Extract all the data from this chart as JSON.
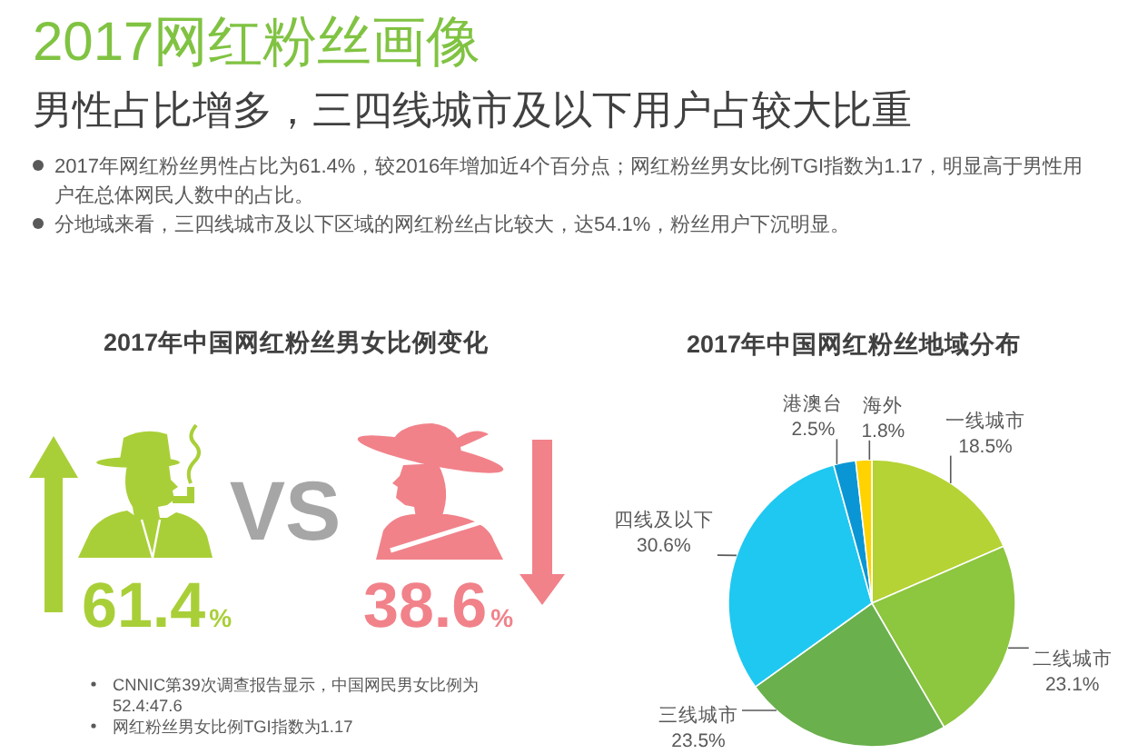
{
  "chart_data": [
    {
      "type": "other",
      "title": "2017网红粉丝画像",
      "subtitle": "男性占比增多，三四线城市及以下用户占较大比重",
      "annotations": [
        "2017年网红粉丝男性占比为61.4%，较2016年增加近4个百分点；网红粉丝男女比例TGI指数为1.17，明显高于男性用户在总体网民人数中的占比。",
        "分地域来看，三四线城市及以下区域的网红粉丝占比较大，达54.1%，粉丝用户下沉明显。"
      ]
    },
    {
      "type": "other",
      "title": "2017年中国网红粉丝男女比例变化",
      "categories": [
        null,
        null
      ],
      "values": [
        61.4,
        38.6
      ],
      "value_labels": [
        "61.4%",
        "38.6%"
      ],
      "colors": [
        "#a9cf38",
        "#f1828a"
      ],
      "annotations": [
        "VS",
        "CNNIC第39次调查报告显示，中国网民男女比例为52.4:47.6",
        "网红粉丝男女比例TGI指数为1.17"
      ]
    },
    {
      "type": "pie",
      "title": "2017年中国网红粉丝地域分布",
      "categories": [
        "一线城市",
        "二线城市",
        "三线城市",
        "四线及以下",
        "港澳台",
        "海外"
      ],
      "values": [
        18.5,
        23.1,
        23.5,
        30.6,
        2.5,
        1.8
      ],
      "value_labels": [
        "18.5%",
        "23.1%",
        "23.5%",
        "30.6%",
        "2.5%",
        "1.8%"
      ],
      "colors": [
        "#b5d334",
        "#8dc63f",
        "#6ab04c",
        "#1fc8f0",
        "#0a96d4",
        "#ffd200"
      ]
    }
  ]
}
